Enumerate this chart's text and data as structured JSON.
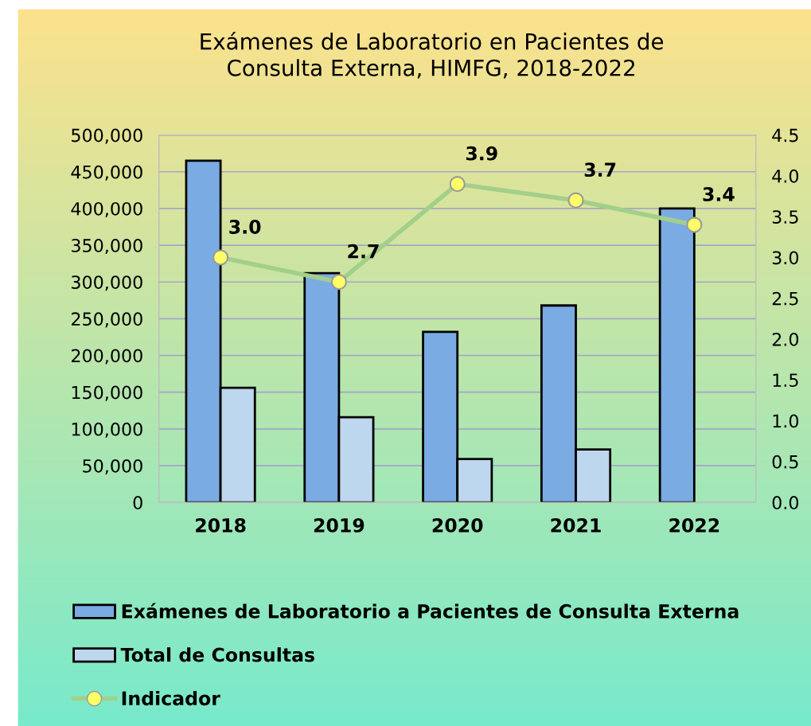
{
  "chart_data": {
    "type": "bar",
    "title": "Exámenes de Laboratorio en Pacientes de\nConsulta Externa, HIMFG, 2018-2022",
    "categories": [
      "2018",
      "2019",
      "2020",
      "2021",
      "2022"
    ],
    "series": [
      {
        "name": "Exámenes de Laboratorio a Pacientes de Consulta Externa",
        "color": "#7aabe3",
        "values": [
          465000,
          312000,
          232000,
          268000,
          400000
        ]
      },
      {
        "name": "Total de Consultas",
        "color": "#bdd7ee",
        "values": [
          156000,
          116000,
          59000,
          72000,
          null
        ]
      },
      {
        "name": "Indicador",
        "type": "line",
        "axis": "y2",
        "color": "#a3cf8a",
        "marker": "circle",
        "values": [
          3.0,
          2.7,
          3.9,
          3.7,
          3.4
        ],
        "value_labels": [
          "3.0",
          "2.7",
          "3.9",
          "3.7",
          "3.4"
        ]
      }
    ],
    "ylim": [
      0,
      500000
    ],
    "yticks": [
      {
        "value": 0,
        "label": "0"
      },
      {
        "value": 50000,
        "label": "50,000"
      },
      {
        "value": 100000,
        "label": "100,000"
      },
      {
        "value": 150000,
        "label": "150,000"
      },
      {
        "value": 200000,
        "label": "200,000"
      },
      {
        "value": 250000,
        "label": "250,000"
      },
      {
        "value": 300000,
        "label": "300,000"
      },
      {
        "value": 350000,
        "label": "350,000"
      },
      {
        "value": 400000,
        "label": "400,000"
      },
      {
        "value": 450000,
        "label": "450,000"
      },
      {
        "value": 500000,
        "label": "500,000"
      }
    ],
    "y2lim": [
      0,
      4.5
    ],
    "y2ticks": [
      {
        "value": 0,
        "label": "0.0"
      },
      0.5,
      {
        "value": 1,
        "label": "1.0"
      },
      1.5,
      {
        "value": 2,
        "label": "2.0"
      },
      2.5,
      {
        "value": 3,
        "label": "3.0"
      },
      3.5,
      {
        "value": 4,
        "label": "4.0"
      },
      4.5
    ],
    "grid": "y",
    "legend": "bottom"
  }
}
